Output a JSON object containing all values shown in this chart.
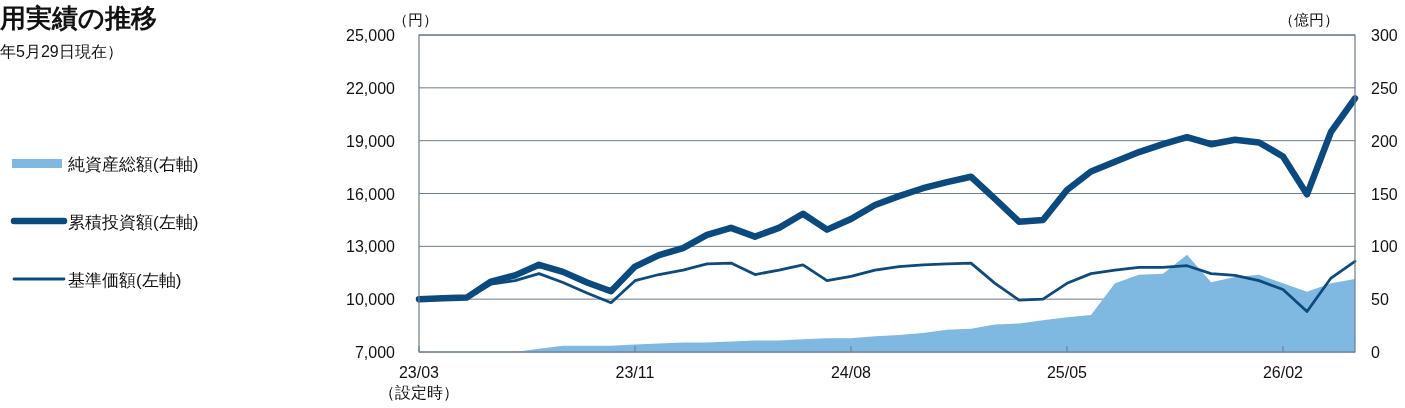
{
  "chart_data": {
    "type": "line",
    "title": "用実績の推移",
    "subtitle": "年5月29日現在）",
    "ylabel": "（円）",
    "y2label": "（億円）",
    "categories": [
      "23/03\n（設定時）",
      null,
      null,
      null,
      null,
      null,
      null,
      null,
      null,
      "23/11",
      null,
      null,
      null,
      null,
      null,
      null,
      null,
      null,
      "24/08",
      null,
      null,
      null,
      null,
      null,
      null,
      null,
      null,
      "25/05",
      null,
      null,
      null,
      null,
      null,
      null,
      null,
      null,
      "26/02",
      null,
      null,
      null
    ],
    "series": [
      {
        "name": "純資産総額(右軸)",
        "type": "area",
        "axis": "y2",
        "color": "#7fb8e0",
        "values": [
          0,
          0,
          0,
          0,
          0,
          3,
          6,
          6,
          6,
          7,
          8,
          9,
          9,
          10,
          11,
          11,
          12,
          13,
          13,
          15,
          16,
          18,
          21,
          22,
          26,
          27,
          30,
          33,
          35,
          65,
          73,
          74,
          92,
          66,
          71,
          73,
          65,
          57,
          65,
          69
        ]
      },
      {
        "name": "累積投資額(左軸)",
        "color": "#0b4a7e",
        "values": [
          10000,
          10050,
          10100,
          11000,
          11350,
          11950,
          11550,
          10950,
          10450,
          11850,
          12500,
          12900,
          13650,
          14050,
          13550,
          14050,
          14850,
          13950,
          14550,
          15350,
          15850,
          16300,
          16650,
          16950,
          15700,
          14400,
          14500,
          16200,
          17250,
          17800,
          18350,
          18800,
          19200,
          18800,
          19050,
          18900,
          18100,
          15950,
          19500,
          21400
        ]
      },
      {
        "name": "基準価額(左軸)",
        "color": "#0d4a7e",
        "values": [
          9950,
          10000,
          10050,
          10850,
          11050,
          11450,
          10950,
          10350,
          9800,
          11050,
          11400,
          11650,
          12000,
          12050,
          11400,
          11650,
          11950,
          11050,
          11300,
          11650,
          11850,
          11950,
          12000,
          12050,
          10900,
          9950,
          10000,
          10900,
          11450,
          11650,
          11800,
          11800,
          11900,
          11450,
          11350,
          11050,
          10550,
          9300,
          11200,
          12150
        ]
      }
    ],
    "ylim": [
      7000,
      25000
    ],
    "yticks": [
      {
        "value": 7000,
        "label": "7,000"
      },
      {
        "value": 10000,
        "label": "10,000"
      },
      {
        "value": 13000,
        "label": "13,000"
      },
      {
        "value": 16000,
        "label": "16,000"
      },
      {
        "value": 19000,
        "label": "19,000"
      },
      {
        "value": 22000,
        "label": "22,000"
      },
      {
        "value": 25000,
        "label": "25,000"
      }
    ],
    "y2lim": [
      0,
      300
    ],
    "y2ticks": [
      0,
      50,
      100,
      150,
      200,
      250,
      300
    ],
    "grid": "y",
    "legend": "left"
  }
}
